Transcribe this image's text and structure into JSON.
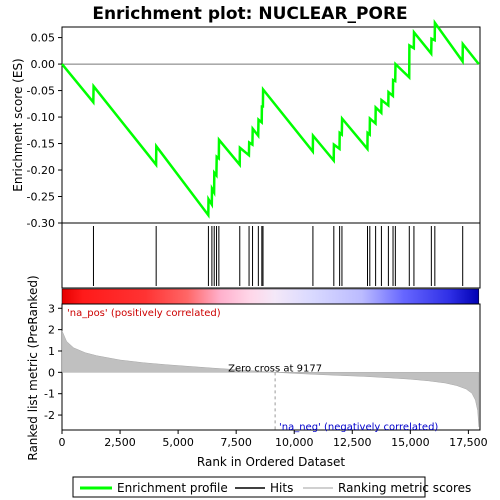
{
  "chart_data": {
    "type": "line",
    "title": "Enrichment plot: NUCLEAR_PORE",
    "es_panel": {
      "ylabel": "Enrichment score (ES)",
      "ylim": [
        -0.3,
        0.07
      ],
      "yticks": [
        "0.05",
        "0.00",
        "-0.05",
        "-0.10",
        "-0.15",
        "-0.20",
        "-0.25",
        "-0.30"
      ],
      "ytick_values": [
        0.05,
        0.0,
        -0.05,
        -0.1,
        -0.15,
        -0.2,
        -0.25,
        -0.3
      ],
      "series_name": "Enrichment profile",
      "color": "#00ff00",
      "points": [
        [
          0,
          0.0
        ],
        [
          1350,
          -0.072
        ],
        [
          1360,
          -0.042
        ],
        [
          4050,
          -0.19
        ],
        [
          4060,
          -0.155
        ],
        [
          6300,
          -0.285
        ],
        [
          6310,
          -0.255
        ],
        [
          6450,
          -0.265
        ],
        [
          6460,
          -0.235
        ],
        [
          6550,
          -0.242
        ],
        [
          6560,
          -0.205
        ],
        [
          6650,
          -0.21
        ],
        [
          6660,
          -0.175
        ],
        [
          6750,
          -0.178
        ],
        [
          6760,
          -0.143
        ],
        [
          7650,
          -0.19
        ],
        [
          7660,
          -0.158
        ],
        [
          8050,
          -0.172
        ],
        [
          8060,
          -0.148
        ],
        [
          8200,
          -0.152
        ],
        [
          8210,
          -0.122
        ],
        [
          8450,
          -0.135
        ],
        [
          8460,
          -0.105
        ],
        [
          8600,
          -0.11
        ],
        [
          8610,
          -0.08
        ],
        [
          8650,
          -0.08
        ],
        [
          8660,
          -0.048
        ],
        [
          10800,
          -0.165
        ],
        [
          10810,
          -0.135
        ],
        [
          11700,
          -0.182
        ],
        [
          11710,
          -0.152
        ],
        [
          11950,
          -0.16
        ],
        [
          11960,
          -0.13
        ],
        [
          12050,
          -0.133
        ],
        [
          12060,
          -0.103
        ],
        [
          13150,
          -0.16
        ],
        [
          13160,
          -0.13
        ],
        [
          13250,
          -0.133
        ],
        [
          13260,
          -0.103
        ],
        [
          13500,
          -0.112
        ],
        [
          13510,
          -0.082
        ],
        [
          13750,
          -0.092
        ],
        [
          13760,
          -0.068
        ],
        [
          14050,
          -0.078
        ],
        [
          14060,
          -0.053
        ],
        [
          14250,
          -0.06
        ],
        [
          14260,
          -0.03
        ],
        [
          14350,
          -0.032
        ],
        [
          14360,
          0.0
        ],
        [
          14950,
          -0.025
        ],
        [
          14960,
          0.035
        ],
        [
          15150,
          0.03
        ],
        [
          15160,
          0.06
        ],
        [
          15900,
          0.02
        ],
        [
          15910,
          0.048
        ],
        [
          16050,
          0.045
        ],
        [
          16060,
          0.078
        ],
        [
          17250,
          0.005
        ],
        [
          17260,
          0.038
        ],
        [
          17950,
          0.0
        ]
      ],
      "hits": [
        1355,
        4055,
        6305,
        6455,
        6555,
        6655,
        6755,
        7655,
        8055,
        8205,
        8455,
        8605,
        8655,
        10805,
        11705,
        11955,
        12055,
        13155,
        13255,
        13505,
        13755,
        14055,
        14255,
        14355,
        14955,
        15155,
        15905,
        16055,
        17255
      ]
    },
    "metric_panel": {
      "ylabel": "Ranked list metric (PreRanked)",
      "ylim": [
        -2.7,
        3.2
      ],
      "yticks": [
        "3",
        "2",
        "1",
        "0",
        "-1",
        "-2"
      ],
      "ytick_values": [
        3,
        2,
        1,
        0,
        -1,
        -2
      ],
      "zero_cross_label": "Zero cross at 9177",
      "zero_cross": 9177,
      "pos_label": "'na_pos' (positively correlated)",
      "neg_label": "'na_neg' (negatively correlated)",
      "metric_curve": [
        [
          0,
          1.95
        ],
        [
          200,
          1.45
        ],
        [
          500,
          1.15
        ],
        [
          1000,
          0.92
        ],
        [
          1500,
          0.78
        ],
        [
          2500,
          0.58
        ],
        [
          3500,
          0.45
        ],
        [
          4500,
          0.36
        ],
        [
          5500,
          0.28
        ],
        [
          6500,
          0.2
        ],
        [
          7500,
          0.13
        ],
        [
          8500,
          0.05
        ],
        [
          9177,
          0.0
        ],
        [
          10000,
          -0.05
        ],
        [
          11000,
          -0.1
        ],
        [
          12000,
          -0.15
        ],
        [
          13000,
          -0.19
        ],
        [
          14000,
          -0.25
        ],
        [
          15000,
          -0.32
        ],
        [
          15800,
          -0.4
        ],
        [
          16500,
          -0.5
        ],
        [
          17000,
          -0.62
        ],
        [
          17400,
          -0.78
        ],
        [
          17650,
          -0.98
        ],
        [
          17800,
          -1.3
        ],
        [
          17900,
          -1.8
        ],
        [
          17950,
          -2.55
        ]
      ]
    },
    "xlabel": "Rank in Ordered Dataset",
    "xlim": [
      0,
      18000
    ],
    "xticks": [
      "0",
      "2,500",
      "5,000",
      "7,500",
      "10,000",
      "12,500",
      "15,000",
      "17,500"
    ],
    "xtick_values": [
      0,
      2500,
      5000,
      7500,
      10000,
      12500,
      15000,
      17500
    ],
    "n_genes": 17950,
    "legend": {
      "placement": "bottom",
      "entries": [
        "Enrichment profile",
        "Hits",
        "Ranking metric scores"
      ]
    }
  }
}
